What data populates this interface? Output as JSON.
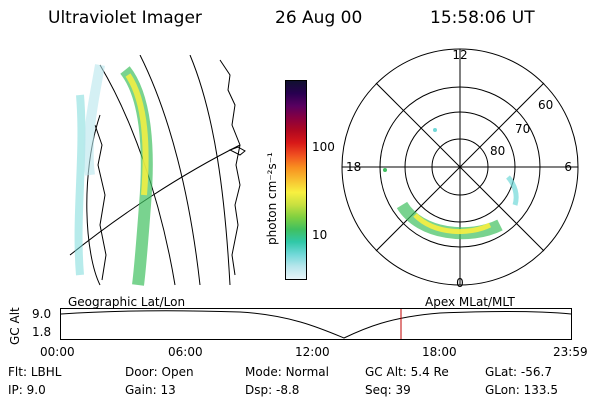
{
  "header": {
    "instrument": "Ultraviolet Imager",
    "date": "26 Aug 00",
    "time": "15:58:06 UT"
  },
  "colorbar": {
    "unit_label": "photon cm⁻²s⁻¹",
    "ticks": [
      "100",
      "10"
    ],
    "colors": [
      "#e8f4f8",
      "#b8e6ec",
      "#70d8d8",
      "#30c8a8",
      "#40c060",
      "#80d040",
      "#c8e040",
      "#f8f040",
      "#f8c030",
      "#f89020",
      "#f05020",
      "#d81818",
      "#b00820",
      "#880040",
      "#580060",
      "#280050",
      "#101030"
    ]
  },
  "polar_plot": {
    "mlt_labels": [
      "12",
      "6",
      "0",
      "18"
    ],
    "lat_labels": [
      "60",
      "70",
      "80"
    ]
  },
  "map_labels": {
    "left": "Geographic Lat/Lon",
    "right": "Apex MLat/MLT"
  },
  "timeline": {
    "axis_title": "GC Alt",
    "y_ticks": [
      "9.0",
      "1.8"
    ],
    "x_ticks": [
      "00:00",
      "06:00",
      "12:00",
      "18:00",
      "23:59"
    ],
    "current_time_color": "#c00000"
  },
  "status": {
    "filter_label": "Flt:",
    "filter_value": "LBHL",
    "ip_label": "IP:",
    "ip_value": "9.0",
    "door_label": "Door:",
    "door_value": "Open",
    "gain_label": "Gain:",
    "gain_value": "13",
    "mode_label": "Mode:",
    "mode_value": "Normal",
    "dsp_label": "Dsp:",
    "dsp_value": "-8.8",
    "gcalt_label": "GC Alt:",
    "gcalt_value": "5.4 Re",
    "seq_label": "Seq:",
    "seq_value": "39",
    "glat_label": "GLat:",
    "glat_value": "-56.7",
    "glon_label": "GLon:",
    "glon_value": "133.5"
  }
}
